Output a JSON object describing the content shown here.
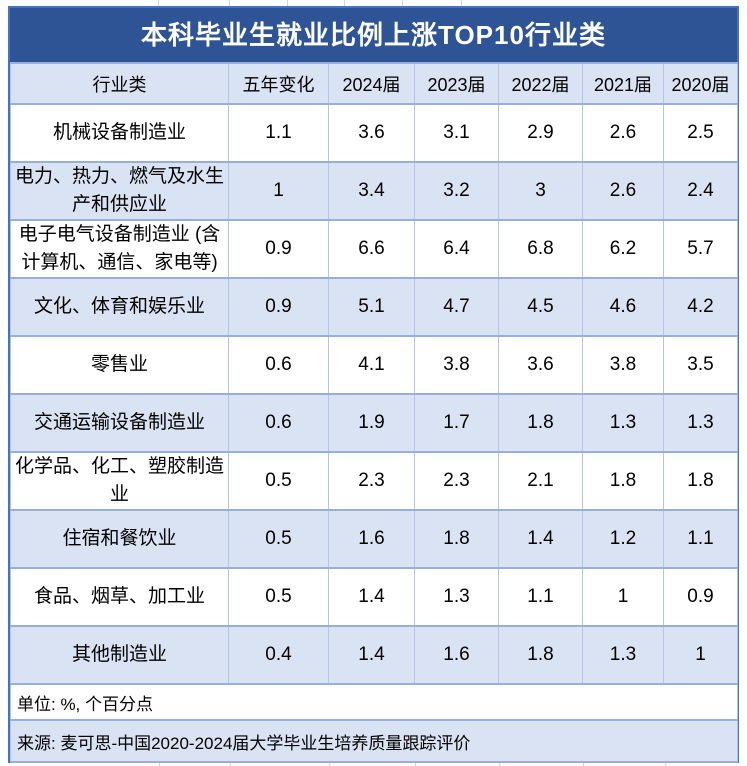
{
  "title": "本科毕业生就业比例上涨TOP10行业类",
  "colors": {
    "title_bar": "#2e5496",
    "band": "#dae3f3",
    "grid_line": "#b4c5e9",
    "row_line": "#98afdd",
    "outer_border": "#4472c4",
    "title_text": "#ffffff",
    "body_text": "#000000"
  },
  "table": {
    "columns": [
      "行业类",
      "五年变化",
      "2024届",
      "2023届",
      "2022届",
      "2021届",
      "2020届"
    ],
    "rows": [
      [
        "机械设备制造业",
        "1.1",
        "3.6",
        "3.1",
        "2.9",
        "2.6",
        "2.5"
      ],
      [
        "电力、热力、燃气及水生产和供应业",
        "1",
        "3.4",
        "3.2",
        "3",
        "2.6",
        "2.4"
      ],
      [
        "电子电气设备制造业 (含计算机、通信、家电等)",
        "0.9",
        "6.6",
        "6.4",
        "6.8",
        "6.2",
        "5.7"
      ],
      [
        "文化、体育和娱乐业",
        "0.9",
        "5.1",
        "4.7",
        "4.5",
        "4.6",
        "4.2"
      ],
      [
        "零售业",
        "0.6",
        "4.1",
        "3.8",
        "3.6",
        "3.8",
        "3.5"
      ],
      [
        "交通运输设备制造业",
        "0.6",
        "1.9",
        "1.7",
        "1.8",
        "1.3",
        "1.3"
      ],
      [
        "化学品、化工、塑胶制造业",
        "0.5",
        "2.3",
        "2.3",
        "2.1",
        "1.8",
        "1.8"
      ],
      [
        "住宿和餐饮业",
        "0.5",
        "1.6",
        "1.8",
        "1.4",
        "1.2",
        "1.1"
      ],
      [
        "食品、烟草、加工业",
        "0.5",
        "1.4",
        "1.3",
        "1.1",
        "1",
        "0.9"
      ],
      [
        "其他制造业",
        "0.4",
        "1.4",
        "1.6",
        "1.8",
        "1.3",
        "1"
      ]
    ]
  },
  "footnotes": {
    "unit": "单位: %, 个百分点",
    "source": "来源: 麦可思-中国2020-2024届大学毕业生培养质量跟踪评价"
  },
  "chart_data": {
    "type": "table",
    "title": "本科毕业生就业比例上涨TOP10行业类",
    "columns": [
      "行业类",
      "五年变化",
      "2024届",
      "2023届",
      "2022届",
      "2021届",
      "2020届"
    ],
    "categories": [
      "机械设备制造业",
      "电力、热力、燃气及水生产和供应业",
      "电子电气设备制造业 (含计算机、通信、家电等)",
      "文化、体育和娱乐业",
      "零售业",
      "交通运输设备制造业",
      "化学品、化工、塑胶制造业",
      "住宿和餐饮业",
      "食品、烟草、加工业",
      "其他制造业"
    ],
    "series": [
      {
        "name": "五年变化",
        "values": [
          1.1,
          1,
          0.9,
          0.9,
          0.6,
          0.6,
          0.5,
          0.5,
          0.5,
          0.4
        ]
      },
      {
        "name": "2024届",
        "values": [
          3.6,
          3.4,
          6.6,
          5.1,
          4.1,
          1.9,
          2.3,
          1.6,
          1.4,
          1.4
        ]
      },
      {
        "name": "2023届",
        "values": [
          3.1,
          3.2,
          6.4,
          4.7,
          3.8,
          1.7,
          2.3,
          1.8,
          1.3,
          1.6
        ]
      },
      {
        "name": "2022届",
        "values": [
          2.9,
          3,
          6.8,
          4.5,
          3.6,
          1.8,
          2.1,
          1.4,
          1.1,
          1.8
        ]
      },
      {
        "name": "2021届",
        "values": [
          2.6,
          2.6,
          6.2,
          4.6,
          3.8,
          1.3,
          1.8,
          1.2,
          1,
          1.3
        ]
      },
      {
        "name": "2020届",
        "values": [
          2.5,
          2.4,
          5.7,
          4.2,
          3.5,
          1.3,
          1.8,
          1.1,
          0.9,
          1
        ]
      }
    ],
    "unit": "%, 个百分点",
    "source": "麦可思-中国2020-2024届大学毕业生培养质量跟踪评价"
  }
}
